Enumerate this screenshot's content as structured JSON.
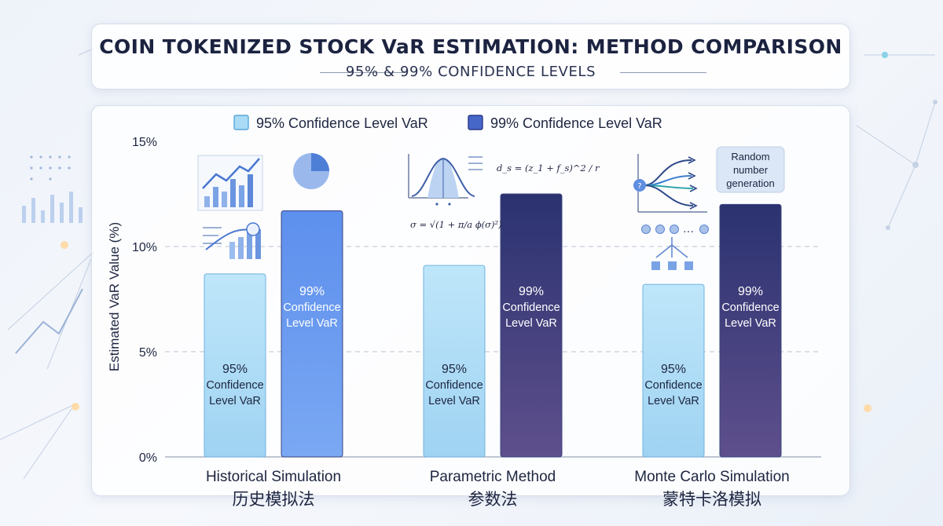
{
  "header": {
    "title": "COIN TOKENIZED STOCK VaR ESTIMATION: METHOD COMPARISON",
    "subtitle": "95% & 99% CONFIDENCE LEVELS"
  },
  "colors": {
    "series_95": "#a9dbf6",
    "series_95_stroke": "#5aa5d8",
    "series_99_historical": "#6b9bef",
    "series_99_dark_top": "#2e3470",
    "series_99_dark_bottom": "#5b4f8f"
  },
  "icons": {
    "historical": [
      "bar-chart-trend-icon",
      "pie-chart-icon",
      "line-bar-chart-icon"
    ],
    "parametric": [
      "bell-curve-icon",
      "list-icon"
    ],
    "montecarlo": [
      "branching-paths-icon",
      "nodes-tree-icon"
    ]
  },
  "annotations": {
    "parametric_formula_1": "d_s = (z_1 + f_s)^2 / r",
    "parametric_formula_2": "σ = √(1 + π/a ϕ(σ)²)",
    "montecarlo_box": [
      "Random",
      "number",
      "generation"
    ],
    "montecarlo_dots": "…"
  },
  "chart_data": {
    "type": "bar",
    "ylabel": "Estimated VaR Value (%)",
    "ylim": [
      0,
      15
    ],
    "yticks": [
      0,
      5,
      10,
      15
    ],
    "ytick_labels": [
      "0%",
      "5%",
      "10%",
      "15%"
    ],
    "grid": "dashed horizontal at 5% and 10%",
    "legend_position": "top",
    "categories": [
      {
        "en": "Historical Simulation",
        "zh": "历史模拟法"
      },
      {
        "en": "Parametric Method",
        "zh": "参数法"
      },
      {
        "en": "Monte Carlo Simulation",
        "zh": "蒙特卡洛模拟"
      }
    ],
    "series": [
      {
        "name": "95% Confidence Level VaR",
        "values": [
          8.7,
          9.1,
          8.2
        ],
        "bar_label": [
          "95%",
          "Confidence",
          "Level VaR"
        ]
      },
      {
        "name": "99% Confidence Level VaR",
        "values": [
          11.7,
          12.5,
          12.0
        ],
        "bar_label": [
          "99%",
          "Confidence",
          "Level VaR"
        ]
      }
    ]
  }
}
